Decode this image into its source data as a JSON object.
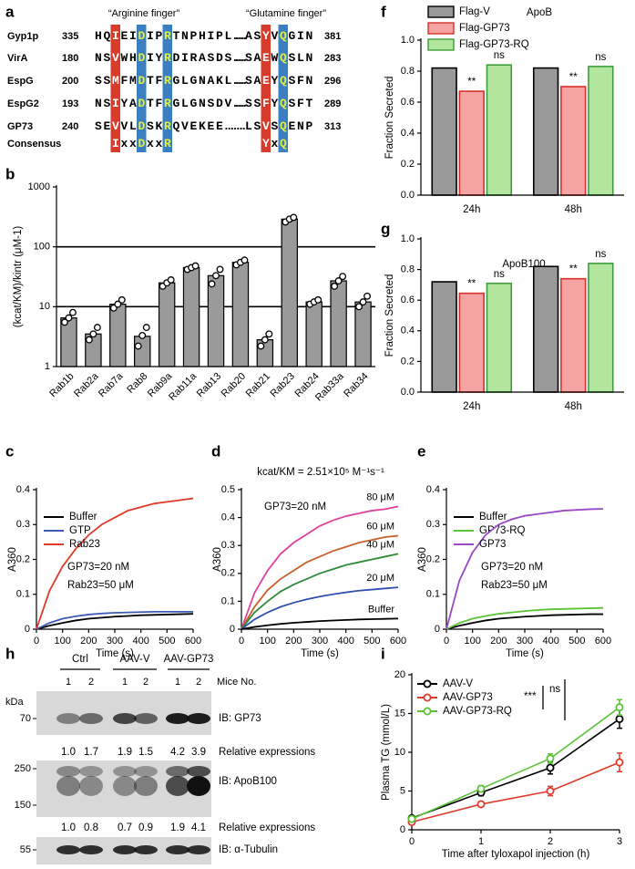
{
  "panel_labels": [
    "a",
    "b",
    "c",
    "d",
    "e",
    "f",
    "g",
    "h",
    "i"
  ],
  "alignment": {
    "headers": [
      "“Arginine finger”",
      "“Glutamine finger”"
    ],
    "rows": [
      {
        "name": "Gyp1p",
        "start": 335,
        "sequence": "HQIEIDIPRTNPHIPL......ASYVQGIN",
        "end": 381
      },
      {
        "name": "VirA",
        "start": 180,
        "sequence": "NSVWHDIYRDIRASDS......SAEWQSLN",
        "end": 283
      },
      {
        "name": "EspG",
        "start": 200,
        "sequence": "SSMFMDTFRGLGNAKL......SAEYQSFN",
        "end": 296
      },
      {
        "name": "EspG2",
        "start": 193,
        "sequence": "NSIYADTFRGLGNSDV......SSFYQSFT",
        "end": 289
      },
      {
        "name": "GP73",
        "start": 240,
        "sequence": "SEVVLDSKRQVEKEE.......LSVSQENP",
        "end": 313
      }
    ],
    "consensus": {
      "name": "Consensus",
      "motifs": [
        "IxxDxxR",
        "YxQ"
      ]
    }
  },
  "chart_data": [
    {
      "type": "bar",
      "y_label": "(kcat/KM)/kintr (μM-1)",
      "categories": [
        "Rab1b",
        "Rab2a",
        "Rab7a",
        "Rab8",
        "Rab9a",
        "Rab11a",
        "Rab13",
        "Rab20",
        "Rab21",
        "Rab23",
        "Rab24",
        "Rab33a",
        "Rab34"
      ],
      "values": [
        6.5,
        3.5,
        11,
        3.2,
        25,
        45,
        33,
        55,
        2.8,
        290,
        12,
        27,
        12
      ],
      "points": [
        [
          5.5,
          6.5,
          8
        ],
        [
          2.8,
          3.5,
          4.5
        ],
        [
          9.5,
          11,
          13
        ],
        [
          2.2,
          3.3,
          4.5
        ],
        [
          22,
          25,
          28
        ],
        [
          42,
          45,
          48
        ],
        [
          24,
          33,
          42
        ],
        [
          50,
          55,
          60
        ],
        [
          2.2,
          2.8,
          3.5
        ],
        [
          260,
          290,
          310
        ],
        [
          11,
          12,
          13
        ],
        [
          22,
          27,
          32
        ],
        [
          10,
          12,
          15
        ]
      ],
      "color": "#9a9a9a",
      "log_scale": true,
      "ylim": [
        1,
        1000
      ],
      "yticks": [
        1,
        10,
        100,
        1000
      ],
      "reference_lines": [
        10,
        100
      ]
    },
    {
      "type": "line",
      "x_label": "Time (s)",
      "y_label": "A360",
      "x": [
        0,
        50,
        100,
        150,
        200,
        250,
        300,
        350,
        400,
        450,
        500,
        550,
        600
      ],
      "series": [
        {
          "name": "Buffer",
          "color": "#000000",
          "values": [
            0,
            0.01,
            0.018,
            0.025,
            0.03,
            0.033,
            0.036,
            0.038,
            0.04,
            0.041,
            0.042,
            0.043,
            0.044
          ]
        },
        {
          "name": "GTP",
          "color": "#3b5bb5",
          "values": [
            0,
            0.018,
            0.03,
            0.037,
            0.042,
            0.045,
            0.047,
            0.048,
            0.049,
            0.05,
            0.05,
            0.05,
            0.05
          ]
        },
        {
          "name": "Rab23",
          "color": "#e03a2a",
          "values": [
            0,
            0.11,
            0.18,
            0.23,
            0.27,
            0.3,
            0.32,
            0.34,
            0.35,
            0.36,
            0.365,
            0.37,
            0.375
          ]
        }
      ],
      "xlim": [
        0,
        600
      ],
      "xticks": [
        0,
        100,
        200,
        300,
        400,
        500,
        600
      ],
      "ylim": [
        0,
        0.4
      ],
      "yticks": [
        0,
        0.1,
        0.2,
        0.3,
        0.4
      ],
      "annotations": [
        "GP73=20 nM",
        "Rab23=50 μM"
      ],
      "legend": "top-left"
    },
    {
      "type": "line",
      "subtitle": "kcat/KM = 2.51×10⁵ M⁻¹s⁻¹",
      "x_label": "Time (s)",
      "y_label": "A360",
      "x": [
        0,
        50,
        100,
        150,
        200,
        250,
        300,
        350,
        400,
        450,
        500,
        550,
        600
      ],
      "series": [
        {
          "name": "80 μM",
          "color": "#e0409a",
          "values": [
            0,
            0.13,
            0.21,
            0.27,
            0.31,
            0.34,
            0.37,
            0.39,
            0.405,
            0.415,
            0.425,
            0.43,
            0.44
          ]
        },
        {
          "name": "60 μM",
          "color": "#c8602a",
          "values": [
            0,
            0.08,
            0.14,
            0.18,
            0.21,
            0.24,
            0.26,
            0.28,
            0.295,
            0.31,
            0.32,
            0.33,
            0.335
          ]
        },
        {
          "name": "40 μM",
          "color": "#2e8b3a",
          "values": [
            0,
            0.06,
            0.1,
            0.135,
            0.16,
            0.18,
            0.2,
            0.215,
            0.23,
            0.24,
            0.25,
            0.26,
            0.27
          ]
        },
        {
          "name": "20 μM",
          "color": "#3050b0",
          "values": [
            0,
            0.035,
            0.06,
            0.08,
            0.095,
            0.107,
            0.117,
            0.125,
            0.132,
            0.138,
            0.142,
            0.146,
            0.15
          ]
        },
        {
          "name": "Buffer",
          "color": "#000000",
          "values": [
            0,
            0.008,
            0.014,
            0.019,
            0.023,
            0.026,
            0.029,
            0.031,
            0.033,
            0.035,
            0.036,
            0.037,
            0.038
          ]
        }
      ],
      "xlim": [
        0,
        600
      ],
      "xticks": [
        0,
        100,
        200,
        300,
        400,
        500,
        600
      ],
      "ylim": [
        0,
        0.5
      ],
      "yticks": [
        0,
        0.1,
        0.2,
        0.3,
        0.4,
        0.5
      ],
      "annotations": [
        "GP73=20 nM"
      ],
      "legend": "line-end"
    },
    {
      "type": "line",
      "x_label": "Time (s)",
      "y_label": "A360",
      "x": [
        0,
        50,
        100,
        150,
        200,
        250,
        300,
        350,
        400,
        450,
        500,
        550,
        600
      ],
      "series": [
        {
          "name": "Buffer",
          "color": "#000000",
          "values": [
            0,
            0.01,
            0.018,
            0.025,
            0.03,
            0.033,
            0.036,
            0.038,
            0.04,
            0.041,
            0.042,
            0.043,
            0.043
          ]
        },
        {
          "name": "GP73-RQ",
          "color": "#5cc236",
          "values": [
            0,
            0.018,
            0.03,
            0.038,
            0.044,
            0.048,
            0.052,
            0.055,
            0.057,
            0.058,
            0.059,
            0.06,
            0.061
          ]
        },
        {
          "name": "GP73",
          "color": "#9a48c8",
          "values": [
            0,
            0.14,
            0.22,
            0.27,
            0.3,
            0.315,
            0.325,
            0.33,
            0.335,
            0.34,
            0.342,
            0.344,
            0.345
          ]
        }
      ],
      "xlim": [
        0,
        600
      ],
      "xticks": [
        0,
        100,
        200,
        300,
        400,
        500,
        600
      ],
      "ylim": [
        0,
        0.4
      ],
      "yticks": [
        0,
        0.1,
        0.2,
        0.3,
        0.4
      ],
      "annotations": [
        "GP73=20 nM",
        "Rab23=50 μM"
      ],
      "legend": "top-left"
    },
    {
      "type": "grouped_bar",
      "title": "ApoB",
      "y_label": "Fraction Secreted",
      "categories": [
        "24h",
        "48h"
      ],
      "series": [
        {
          "name": "Flag-V",
          "color": "#999999",
          "edge_color": "#000000",
          "values": [
            0.82,
            0.82
          ]
        },
        {
          "name": "Flag-GP73",
          "color": "#f5a3a3",
          "edge_color": "#d9302a",
          "values": [
            0.67,
            0.7
          ]
        },
        {
          "name": "Flag-GP73-RQ",
          "color": "#b2e59e",
          "edge_color": "#3f9e3a",
          "values": [
            0.84,
            0.83
          ]
        }
      ],
      "significance": [
        [
          null,
          "**",
          "ns"
        ],
        [
          null,
          "**",
          "ns"
        ]
      ],
      "ylim": [
        0,
        1
      ],
      "yticks": [
        {
          "value": 0,
          "label": "0.0"
        },
        0.2,
        0.4,
        0.6,
        0.8,
        {
          "value": 1,
          "label": "1.0"
        }
      ],
      "legend": "top-left"
    },
    {
      "type": "grouped_bar",
      "title": "ApoB100",
      "y_label": "Fraction Secreted",
      "categories": [
        "24h",
        "48h"
      ],
      "series": [
        {
          "color": "#999999",
          "edge_color": "#000000",
          "values": [
            0.72,
            0.82
          ]
        },
        {
          "color": "#f5a3a3",
          "edge_color": "#d9302a",
          "values": [
            0.645,
            0.74
          ]
        },
        {
          "color": "#b2e59e",
          "edge_color": "#3f9e3a",
          "values": [
            0.71,
            0.84
          ]
        }
      ],
      "significance": [
        [
          null,
          "**",
          "ns"
        ],
        [
          null,
          "**",
          "ns"
        ]
      ],
      "ylim": [
        0,
        1
      ],
      "yticks": [
        {
          "value": 0,
          "label": "0.0"
        },
        0.2,
        0.4,
        0.6,
        0.8,
        {
          "value": 1,
          "label": "1.0"
        }
      ]
    },
    {
      "type": "line",
      "x_label": "Time after tyloxapol injection (h)",
      "y_label": "Plasma TG (mmol/L)",
      "x": [
        0,
        1,
        2,
        3
      ],
      "series": [
        {
          "name": "AAV-V",
          "color": "#000000",
          "values": [
            1.5,
            4.8,
            8.0,
            14.3
          ],
          "errors": [
            0.3,
            0.4,
            0.8,
            1.2
          ]
        },
        {
          "name": "AAV-GP73",
          "color": "#e03a2a",
          "values": [
            1.0,
            3.3,
            5.0,
            8.7
          ],
          "errors": [
            0.2,
            0.3,
            0.6,
            1.2
          ]
        },
        {
          "name": "AAV-GP73-RQ",
          "color": "#5cc236",
          "values": [
            1.4,
            5.3,
            9.2,
            15.8
          ],
          "errors": [
            0.3,
            0.4,
            0.6,
            1.0
          ]
        }
      ],
      "markers": true,
      "xlim": [
        0,
        3
      ],
      "xticks": [
        0,
        1,
        2,
        3
      ],
      "ylim": [
        0,
        20
      ],
      "yticks": [
        0,
        5,
        10,
        15,
        20
      ],
      "annotations": [
        "***",
        "ns"
      ],
      "legend": "top-left"
    }
  ],
  "blot": {
    "groups": [
      "Ctrl",
      "AAV-V",
      "AAV-GP73"
    ],
    "mice": [
      1,
      2,
      1,
      2,
      1,
      2
    ],
    "mice_label": "Mice No.",
    "kda_label": "kDa",
    "panels": [
      {
        "markers": [
          70
        ],
        "label": "IB: GP73",
        "relative": [
          "1.0",
          "1.7",
          "1.9",
          "1.5",
          "4.2",
          "3.9"
        ],
        "relative_label": "Relative expressions"
      },
      {
        "markers": [
          250,
          150
        ],
        "label": "IB: ApoB100",
        "relative": [
          "1.0",
          "0.8",
          "0.7",
          "0.9",
          "1.9",
          "4.1"
        ],
        "relative_label": "Relative expressions"
      },
      {
        "markers": [
          55
        ],
        "label": "IB: α-Tubulin"
      }
    ]
  }
}
